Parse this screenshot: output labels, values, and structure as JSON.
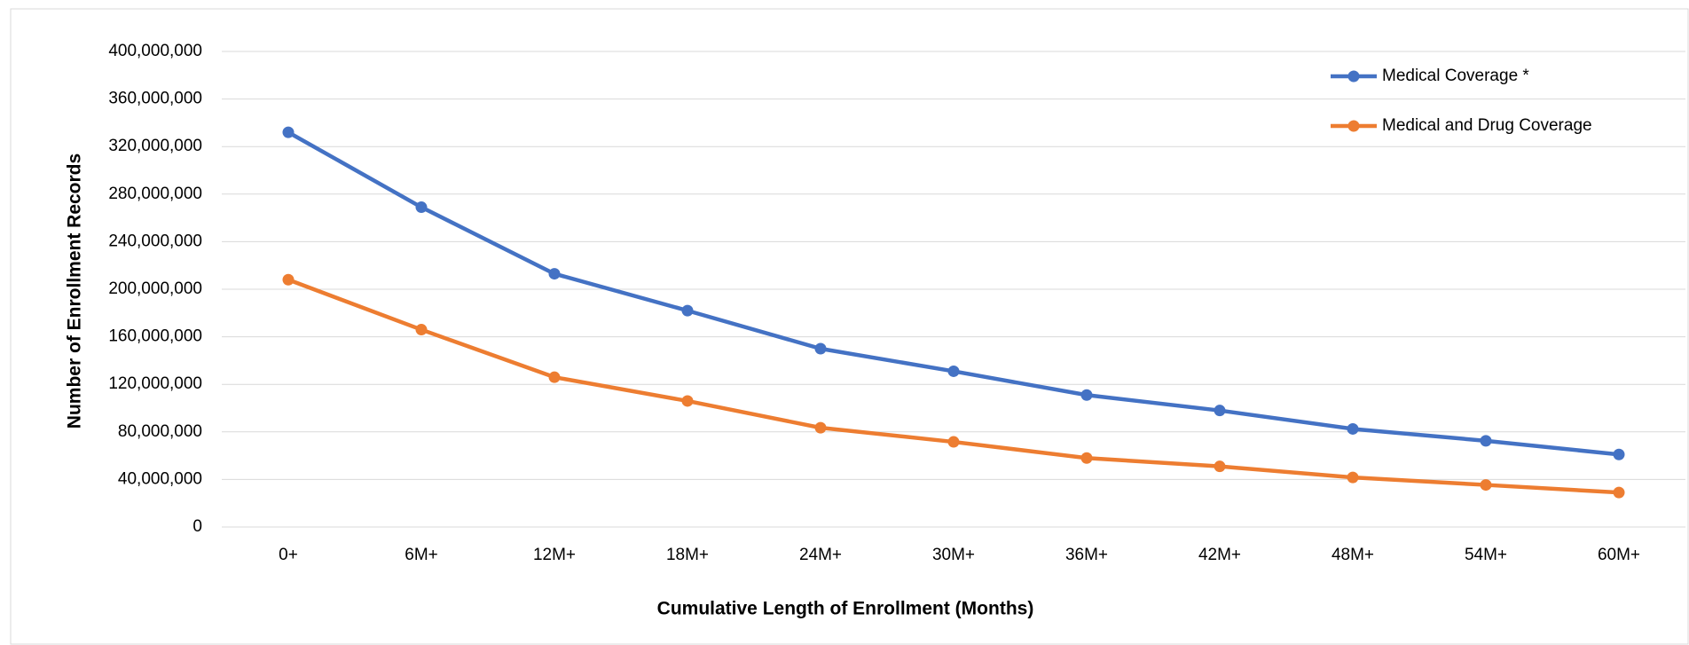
{
  "chart_data": {
    "type": "line",
    "x_label": "Cumulative Length of Enrollment (Months)",
    "y_label": "Number of Enrollment Records",
    "categories": [
      "0+",
      "6M+",
      "12M+",
      "18M+",
      "24M+",
      "30M+",
      "36M+",
      "42M+",
      "48M+",
      "54M+",
      "60M+"
    ],
    "series": [
      {
        "name": "Medical Coverage *",
        "color": "#4472c4",
        "values": [
          332000000,
          269000000,
          213000000,
          182000000,
          150000000,
          131000000,
          111000000,
          98000000,
          82500000,
          72500000,
          61000000
        ]
      },
      {
        "name": "Medical and Drug Coverage",
        "color": "#ed7d31",
        "values": [
          208000000,
          166000000,
          126000000,
          106000000,
          83500000,
          71600000,
          58000000,
          51000000,
          41700000,
          35400000,
          29000000
        ]
      }
    ],
    "ylim": [
      0,
      400000000
    ],
    "yticks": [
      0,
      {
        "value": 40000000,
        "label": "40,000,000"
      },
      {
        "value": 80000000,
        "label": "80,000,000"
      },
      {
        "value": 120000000,
        "label": "120,000,000"
      },
      {
        "value": 160000000,
        "label": "160,000,000"
      },
      {
        "value": 200000000,
        "label": "200,000,000"
      },
      {
        "value": 240000000,
        "label": "240,000,000"
      },
      {
        "value": 280000000,
        "label": "280,000,000"
      },
      {
        "value": 320000000,
        "label": "320,000,000"
      },
      {
        "value": 360000000,
        "label": "360,000,000"
      },
      {
        "value": 400000000,
        "label": "400,000,000"
      }
    ],
    "grid": true,
    "legend": "top-right"
  }
}
